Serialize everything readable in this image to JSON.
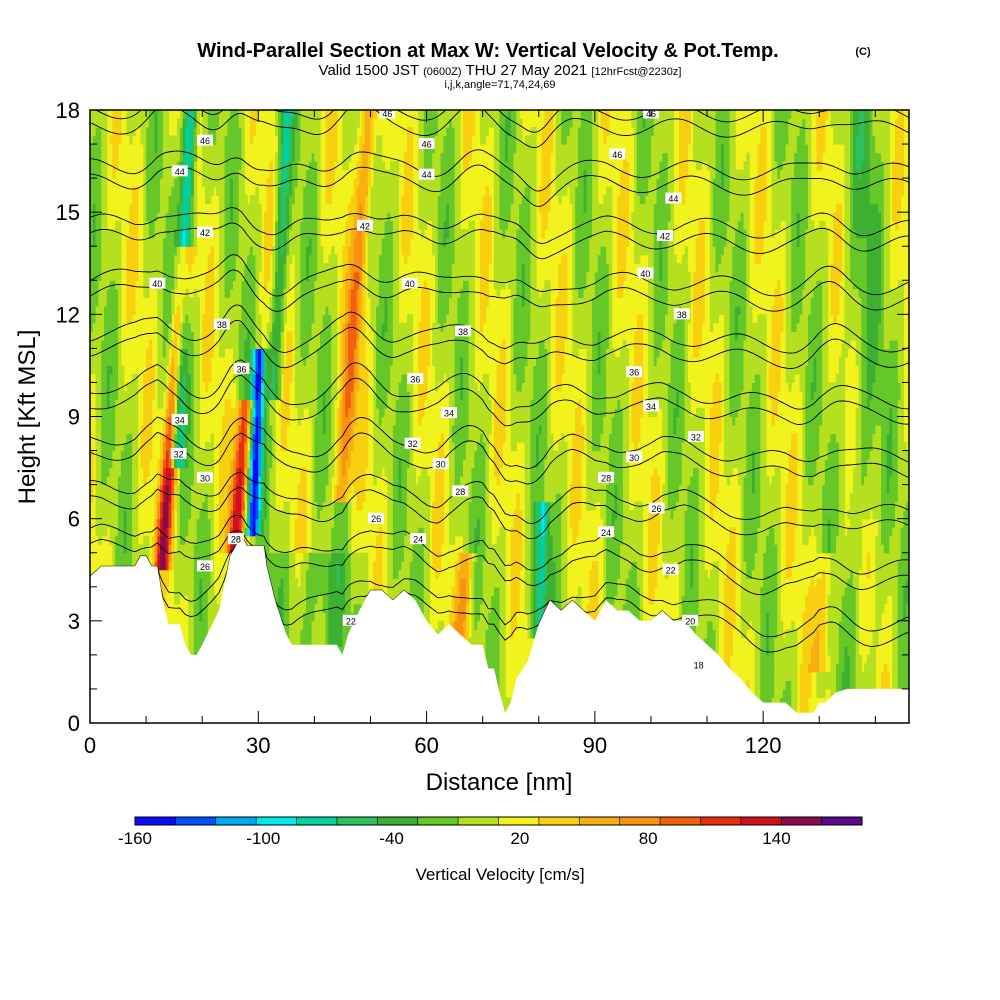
{
  "header": {
    "title": "Wind-Parallel Section at Max W: Vertical Velocity & Pot.Temp.",
    "copyright": "(C)",
    "valid_prefix": "Valid 1500 JST",
    "valid_z": "(0600Z)",
    "valid_date": "THU 27 May 2021",
    "fcst": "[12hrFcst@2230z]",
    "indices": "i,j,k,angle=71,74,24,69"
  },
  "chart_data": {
    "type": "heatmap",
    "xlabel": "Distance [nm]",
    "ylabel": "Height [Kft MSL]",
    "xlim": [
      0,
      146
    ],
    "ylim": [
      0,
      18
    ],
    "xticks": [
      0,
      30,
      60,
      90,
      120
    ],
    "yticks": [
      0,
      3,
      6,
      9,
      12,
      15,
      18
    ],
    "colorbar": {
      "label": "Vertical Velocity [cm/s]",
      "tick_labels": [
        "-160",
        "-100",
        "-40",
        "20",
        "80",
        "140"
      ],
      "tick_values": [
        -160,
        -100,
        -40,
        20,
        80,
        140
      ],
      "range": [
        -160,
        180
      ],
      "bin_colors": [
        "#0a0aff",
        "#0050ff",
        "#00a8f0",
        "#00eaea",
        "#00d0a0",
        "#2cc060",
        "#3cb030",
        "#66c828",
        "#b4e020",
        "#f2f21c",
        "#f8d010",
        "#f8b010",
        "#f89010",
        "#f06010",
        "#e82e10",
        "#d01020",
        "#8a0a50",
        "#5a0a8a"
      ]
    },
    "terrain_profile": {
      "x": [
        0,
        2,
        5,
        8,
        9,
        10,
        11,
        12,
        13,
        14,
        16,
        17,
        18,
        19,
        20,
        23,
        25,
        26,
        27,
        28,
        29,
        31,
        31.5,
        33,
        35,
        36,
        40,
        44,
        45,
        46,
        48,
        50,
        52,
        54,
        56,
        58,
        60,
        62,
        64,
        66,
        68,
        70,
        71,
        72,
        73,
        74,
        75,
        76,
        78,
        80,
        82,
        84,
        86,
        88,
        90,
        92,
        94,
        96,
        98,
        100,
        102,
        104,
        106,
        108,
        110,
        112,
        114,
        116,
        118,
        120,
        122,
        124,
        126,
        128,
        129,
        130,
        131,
        133,
        135,
        138,
        141,
        146
      ],
      "height": [
        4.3,
        4.6,
        4.6,
        4.6,
        4.9,
        4.9,
        4.6,
        4.6,
        3.6,
        2.9,
        2.9,
        2.3,
        2.0,
        2.0,
        2.3,
        3.3,
        4.9,
        5.2,
        5.5,
        5.2,
        5.2,
        5.2,
        4.6,
        3.6,
        2.6,
        2.3,
        2.3,
        2.3,
        2.0,
        2.6,
        3.3,
        3.9,
        3.9,
        3.6,
        3.9,
        3.6,
        3.0,
        2.6,
        2.9,
        2.6,
        2.3,
        2.3,
        1.6,
        1.6,
        0.9,
        0.3,
        0.6,
        1.3,
        1.8,
        2.9,
        3.6,
        3.3,
        3.6,
        3.3,
        3.0,
        3.6,
        3.3,
        3.3,
        3.0,
        3.0,
        3.3,
        3.0,
        3.0,
        2.6,
        2.3,
        2.0,
        1.6,
        1.3,
        0.9,
        0.6,
        0.6,
        0.6,
        0.3,
        0.3,
        0.3,
        0.6,
        0.6,
        0.9,
        1.0,
        1.0,
        1.0,
        1.0
      ]
    },
    "updraft_cores": [
      {
        "x": 13,
        "z_bottom": 5.0,
        "z_top": 13.5,
        "peak_w": 120
      },
      {
        "x": 26,
        "z_bottom": 5.5,
        "z_top": 9.0,
        "peak_w": 130
      },
      {
        "x": 45,
        "z_bottom": 7.0,
        "z_top": 18.0,
        "peak_w": 80
      },
      {
        "x": 66,
        "z_bottom": 2.0,
        "z_top": 4.5,
        "peak_w": 60
      },
      {
        "x": 130,
        "z_bottom": 2.0,
        "z_top": 4.5,
        "peak_w": 50
      }
    ],
    "downdraft_cores": [
      {
        "x": 15.5,
        "z_bottom": 8.0,
        "z_top": 18.0,
        "peak_w": -110
      },
      {
        "x": 29,
        "z_bottom": 6.0,
        "z_top": 10.5,
        "peak_w": -150
      },
      {
        "x": 33,
        "z_bottom": 10.0,
        "z_top": 18.0,
        "peak_w": -60
      },
      {
        "x": 80,
        "z_bottom": 3.0,
        "z_top": 6.0,
        "peak_w": -80
      }
    ],
    "theta_contours": {
      "levels": [
        18,
        20,
        22,
        24,
        26,
        28,
        30,
        32,
        34,
        36,
        38,
        40,
        42,
        44,
        46
      ],
      "label_points": [
        {
          "text": "46",
          "x": 53,
          "y": 17.9
        },
        {
          "text": "46",
          "x": 100,
          "y": 17.9
        },
        {
          "text": "46",
          "x": 20.5,
          "y": 17.1
        },
        {
          "text": "46",
          "x": 60,
          "y": 17.0
        },
        {
          "text": "46",
          "x": 94,
          "y": 16.7
        },
        {
          "text": "44",
          "x": 16,
          "y": 16.2
        },
        {
          "text": "44",
          "x": 60,
          "y": 16.1
        },
        {
          "text": "44",
          "x": 104,
          "y": 15.4
        },
        {
          "text": "42",
          "x": 49,
          "y": 14.6
        },
        {
          "text": "42",
          "x": 20.5,
          "y": 14.4
        },
        {
          "text": "42",
          "x": 102.5,
          "y": 14.3
        },
        {
          "text": "40",
          "x": 12,
          "y": 12.9
        },
        {
          "text": "40",
          "x": 57,
          "y": 12.9
        },
        {
          "text": "40",
          "x": 99,
          "y": 13.2
        },
        {
          "text": "38",
          "x": 23.5,
          "y": 11.7
        },
        {
          "text": "38",
          "x": 66.5,
          "y": 11.5
        },
        {
          "text": "38",
          "x": 105.5,
          "y": 12.0
        },
        {
          "text": "36",
          "x": 27,
          "y": 10.4
        },
        {
          "text": "36",
          "x": 58,
          "y": 10.1
        },
        {
          "text": "36",
          "x": 97,
          "y": 10.3
        },
        {
          "text": "34",
          "x": 16,
          "y": 8.9
        },
        {
          "text": "34",
          "x": 64,
          "y": 9.1
        },
        {
          "text": "34",
          "x": 100,
          "y": 9.3
        },
        {
          "text": "32",
          "x": 15.8,
          "y": 7.9
        },
        {
          "text": "32",
          "x": 57.5,
          "y": 8.2
        },
        {
          "text": "32",
          "x": 108,
          "y": 8.4
        },
        {
          "text": "30",
          "x": 20.5,
          "y": 7.2
        },
        {
          "text": "30",
          "x": 62.5,
          "y": 7.6
        },
        {
          "text": "30",
          "x": 97,
          "y": 7.8
        },
        {
          "text": "28",
          "x": 66,
          "y": 6.8
        },
        {
          "text": "28",
          "x": 92,
          "y": 7.2
        },
        {
          "text": "26",
          "x": 51,
          "y": 6.0
        },
        {
          "text": "26",
          "x": 101,
          "y": 6.3
        },
        {
          "text": "28",
          "x": 26,
          "y": 5.4
        },
        {
          "text": "24",
          "x": 58.5,
          "y": 5.4
        },
        {
          "text": "24",
          "x": 92,
          "y": 5.6
        },
        {
          "text": "26",
          "x": 20.5,
          "y": 4.6
        },
        {
          "text": "22",
          "x": 103.5,
          "y": 4.5
        },
        {
          "text": "22",
          "x": 46.5,
          "y": 3.0
        },
        {
          "text": "20",
          "x": 107,
          "y": 3.0
        },
        {
          "text": "18",
          "x": 108.5,
          "y": 1.7
        }
      ]
    }
  }
}
